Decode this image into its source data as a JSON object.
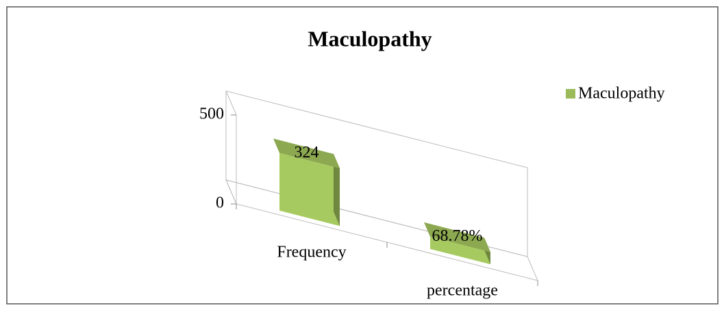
{
  "chart_data": {
    "type": "bar3d",
    "title": "Maculopathy",
    "categories": [
      "Frequency",
      "percentage"
    ],
    "series": [
      {
        "name": "Maculopathy",
        "color": "#9bbb59",
        "values": [
          324,
          68.78
        ],
        "value_labels": [
          "324",
          "68.78%"
        ]
      }
    ],
    "ylim": [
      0,
      500
    ],
    "yticks": [
      0,
      500
    ],
    "legend": "top-right"
  }
}
